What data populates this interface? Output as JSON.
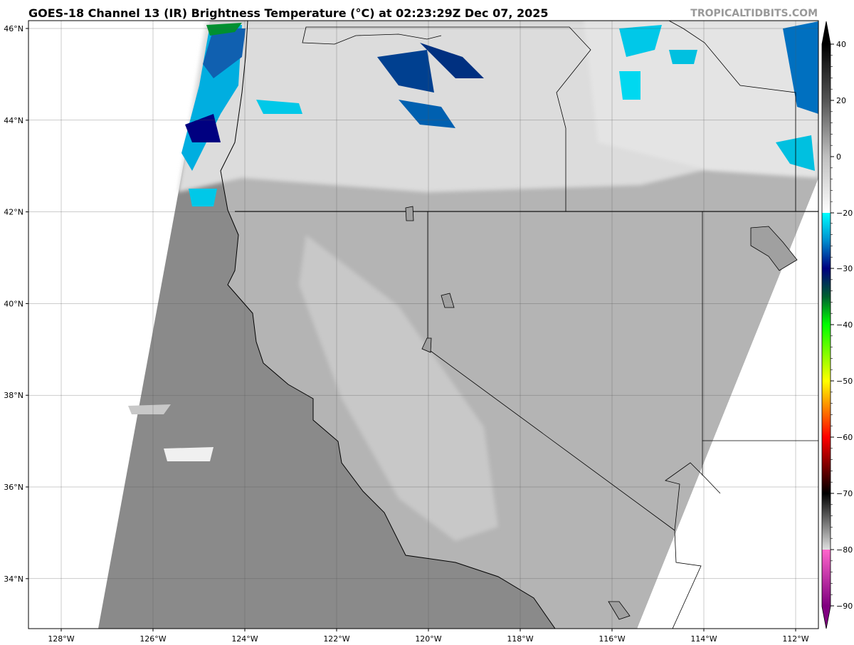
{
  "header": {
    "title": "GOES-18 Channel 13 (IR) Brightness Temperature (°C) at 02:23:29Z Dec 07, 2025",
    "watermark": "TROPICALTIDBITS.COM"
  },
  "map": {
    "lat_labels": [
      "46°N",
      "44°N",
      "42°N",
      "40°N",
      "38°N",
      "36°N",
      "34°N"
    ],
    "lon_labels": [
      "128°W",
      "126°W",
      "124°W",
      "122°W",
      "120°W",
      "118°W",
      "116°W",
      "114°W",
      "112°W"
    ],
    "background_color": "#ffffff",
    "land_ir_color": "#b4b4b4",
    "ocean_ir_color": "#8a8a8a"
  },
  "colorbar": {
    "ticks": [
      "40",
      "20",
      "0",
      "−20",
      "−30",
      "−40",
      "−50",
      "−60",
      "−70",
      "−80",
      "−90"
    ],
    "stops": [
      {
        "value": 40,
        "color": "#000000"
      },
      {
        "value": 20,
        "color": "#555555"
      },
      {
        "value": 0,
        "color": "#c0c0c0"
      },
      {
        "value": -20,
        "color": "#ffffff"
      },
      {
        "value": -20,
        "color": "#00ffff"
      },
      {
        "value": -25,
        "color": "#0090d0"
      },
      {
        "value": -30,
        "color": "#000080"
      },
      {
        "value": -35,
        "color": "#006030"
      },
      {
        "value": -40,
        "color": "#00ff00"
      },
      {
        "value": -50,
        "color": "#ffff00"
      },
      {
        "value": -55,
        "color": "#ff8000"
      },
      {
        "value": -60,
        "color": "#ff0000"
      },
      {
        "value": -70,
        "color": "#000000"
      },
      {
        "value": -80,
        "color": "#e0e0e0"
      },
      {
        "value": -80,
        "color": "#ff66cc"
      },
      {
        "value": -90,
        "color": "#800080"
      }
    ]
  }
}
